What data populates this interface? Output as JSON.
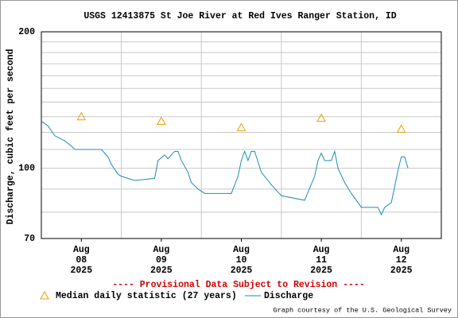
{
  "chart_data": {
    "type": "line",
    "title": "USGS 12413875 St Joe River at Red Ives Ranger Station, ID",
    "y_label": "Discharge, cubic feet per second",
    "notice": "---- Provisional Data Subject to Revision ----",
    "credit": "Graph courtesy of the U.S. Geological Survey",
    "y_log": true,
    "ylim": [
      70,
      200
    ],
    "yticks": [
      70,
      100,
      200
    ],
    "y_minor_ticks": [
      80,
      90,
      110,
      120,
      130,
      140,
      150,
      160,
      170,
      180,
      190
    ],
    "xlim": [
      0,
      120
    ],
    "xticks": [
      24,
      48,
      72,
      96
    ],
    "xlabels": [
      {
        "value": 12,
        "month": "Aug",
        "day": "08",
        "year": "2025"
      },
      {
        "value": 36,
        "month": "Aug",
        "day": "09",
        "year": "2025"
      },
      {
        "value": 60,
        "month": "Aug",
        "day": "10",
        "year": "2025"
      },
      {
        "value": 84,
        "month": "Aug",
        "day": "11",
        "year": "2025"
      },
      {
        "value": 108,
        "month": "Aug",
        "day": "12",
        "year": "2025"
      }
    ],
    "series": [
      {
        "name": "Median daily statistic (27 years)",
        "color": "#e8a000",
        "marker": "triangle",
        "x": [
          12,
          36,
          60,
          84,
          108
        ],
        "values": [
          130,
          127,
          123,
          129,
          122
        ]
      },
      {
        "name": "Discharge",
        "color": "#1a8cb4",
        "marker": "line",
        "x": [
          0,
          2,
          4,
          7,
          9,
          10,
          18,
          20,
          21,
          23,
          24,
          28,
          34,
          35,
          37,
          38,
          40,
          41,
          42,
          44,
          45,
          47,
          49,
          57,
          59,
          60,
          61,
          62,
          63,
          64,
          66,
          69,
          72,
          79,
          82,
          83,
          84,
          85,
          87,
          88,
          89,
          91,
          93,
          95,
          96,
          101,
          102,
          103,
          105,
          106,
          107,
          108,
          109,
          110
        ],
        "values": [
          127,
          124,
          118,
          115,
          112,
          110,
          110,
          106,
          102,
          97,
          96,
          94,
          95,
          104,
          107,
          105,
          109,
          109,
          104,
          98,
          93,
          90,
          88,
          88,
          96,
          104,
          109,
          104,
          109,
          109,
          98,
          92,
          87,
          85,
          96,
          104,
          108,
          104,
          104,
          109,
          100,
          93,
          88,
          84,
          82,
          82,
          79,
          82,
          84,
          91,
          99,
          106,
          106,
          100
        ]
      }
    ]
  }
}
